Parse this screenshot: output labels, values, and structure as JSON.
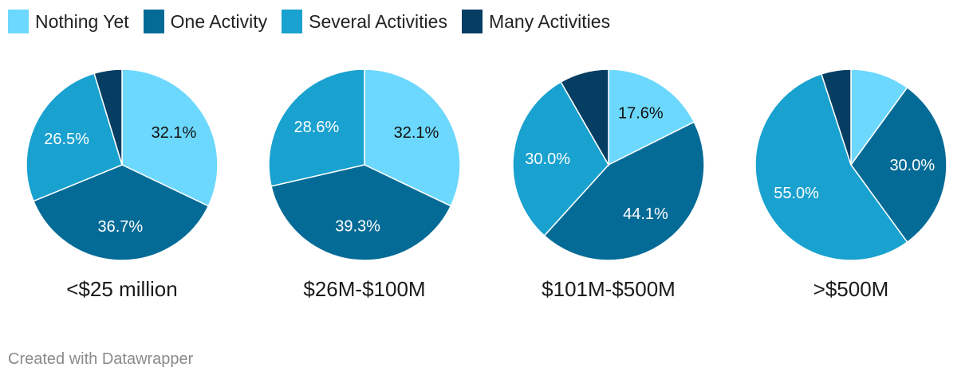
{
  "chart_data": {
    "type": "pie",
    "legend": [
      {
        "label": "Nothing Yet",
        "color": "#6dd8fd"
      },
      {
        "label": "One Activity",
        "color": "#046b96"
      },
      {
        "label": "Several Activities",
        "color": "#19a1cf"
      },
      {
        "label": "Many Activities",
        "color": "#053d63"
      }
    ],
    "legend_position": "top-left",
    "pies": [
      {
        "title": "<$25 million",
        "values": [
          32.1,
          36.7,
          26.5,
          4.7
        ],
        "labels": [
          "32.1%",
          "36.7%",
          "26.5%",
          ""
        ]
      },
      {
        "title": "$26M-$100M",
        "values": [
          32.1,
          39.3,
          28.6,
          0
        ],
        "labels": [
          "32.1%",
          "39.3%",
          "28.6%",
          ""
        ]
      },
      {
        "title": "$101M-$500M",
        "values": [
          17.6,
          44.1,
          30.0,
          8.3
        ],
        "labels": [
          "17.6%",
          "44.1%",
          "30.0%",
          ""
        ]
      },
      {
        "title": ">$500M",
        "values": [
          10.0,
          30.0,
          55.0,
          5.0
        ],
        "labels": [
          "",
          "30.0%",
          "55.0%",
          ""
        ]
      }
    ]
  },
  "footer": "Created with Datawrapper"
}
